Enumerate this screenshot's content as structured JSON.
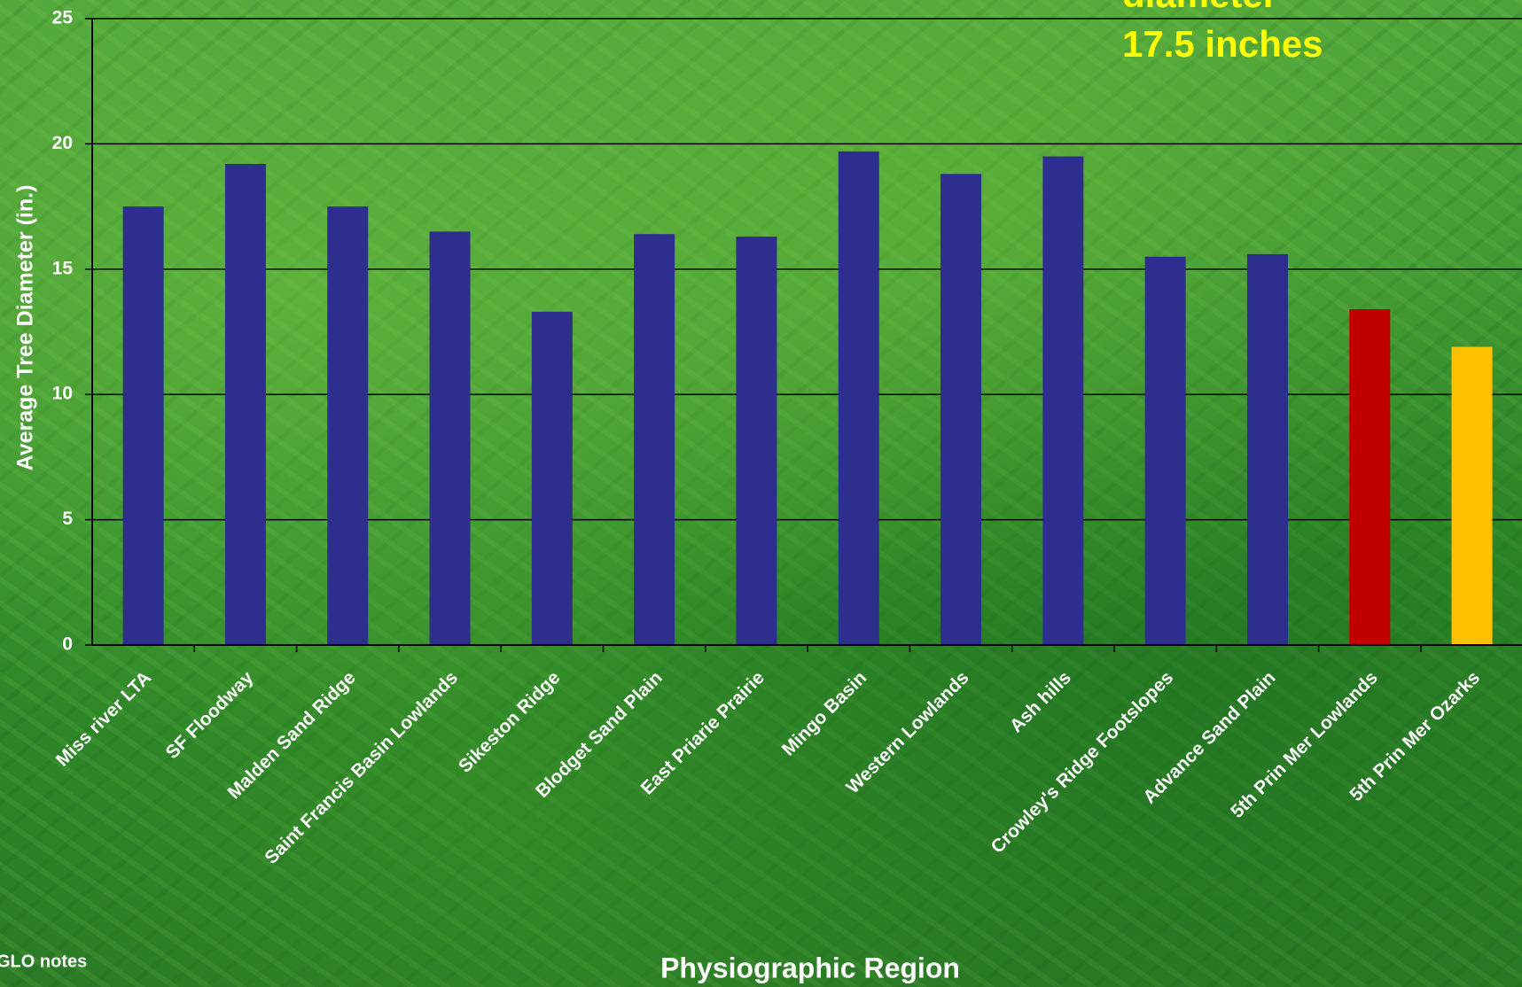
{
  "chart_data": {
    "type": "bar",
    "y_label": "Average Tree Diameter (in.)",
    "x_label": "Physiographic Region",
    "annotations": [
      "diameter",
      "17.5 inches"
    ],
    "source": "GLO notes",
    "categories": [
      "Miss river LTA",
      "SF Floodway",
      "Malden Sand Ridge",
      "Saint Francis Basin Lowlands",
      "Sikeston Ridge",
      "Blodget Sand Plain",
      "East Priarie Prairie",
      "Mingo Basin",
      "Western Lowlands",
      "Ash hills",
      "Crowley's Ridge Footslopes",
      "Advance Sand Plain",
      "5th Prin Mer Lowlands",
      "5th Prin Mer Ozarks"
    ],
    "values": [
      17.5,
      19.2,
      17.5,
      16.5,
      13.3,
      16.4,
      16.3,
      19.7,
      18.8,
      19.5,
      15.5,
      15.6,
      13.4,
      11.9
    ],
    "colors": [
      "#2e2e8e",
      "#2e2e8e",
      "#2e2e8e",
      "#2e2e8e",
      "#2e2e8e",
      "#2e2e8e",
      "#2e2e8e",
      "#2e2e8e",
      "#2e2e8e",
      "#2e2e8e",
      "#2e2e8e",
      "#2e2e8e",
      "#c00000",
      "#ffc000"
    ],
    "ylim": [
      0,
      25
    ],
    "yticks": [
      0,
      5,
      10,
      15,
      20,
      25
    ],
    "grid": true
  }
}
